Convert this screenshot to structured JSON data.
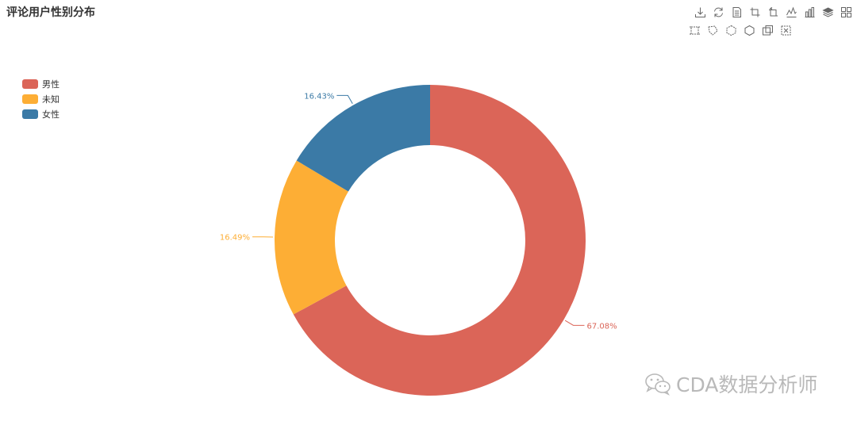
{
  "chart_data": {
    "type": "pie",
    "title": "评论用户性别分布",
    "categories": [
      "男性",
      "未知",
      "女性"
    ],
    "values": [
      67.08,
      16.49,
      16.43
    ],
    "labels": [
      "67.08%",
      "16.49%",
      "16.43%"
    ],
    "colors": [
      "#db6558",
      "#fdae35",
      "#3b7aa6"
    ],
    "donut": true,
    "legend_position": "top-left"
  },
  "toolbox": {
    "row1": [
      "download-icon",
      "refresh-icon",
      "data-view-icon",
      "crop-icon",
      "crop-reset-icon",
      "line-chart-icon",
      "bar-chart-icon",
      "stack-icon",
      "tiled-icon"
    ],
    "row2": [
      "rect-select-icon",
      "lasso-select-icon",
      "keep-select-icon",
      "clear-select-icon",
      "zoom-icon",
      "zoom-reset-icon"
    ]
  },
  "watermark": {
    "text": "CDA数据分析师"
  }
}
